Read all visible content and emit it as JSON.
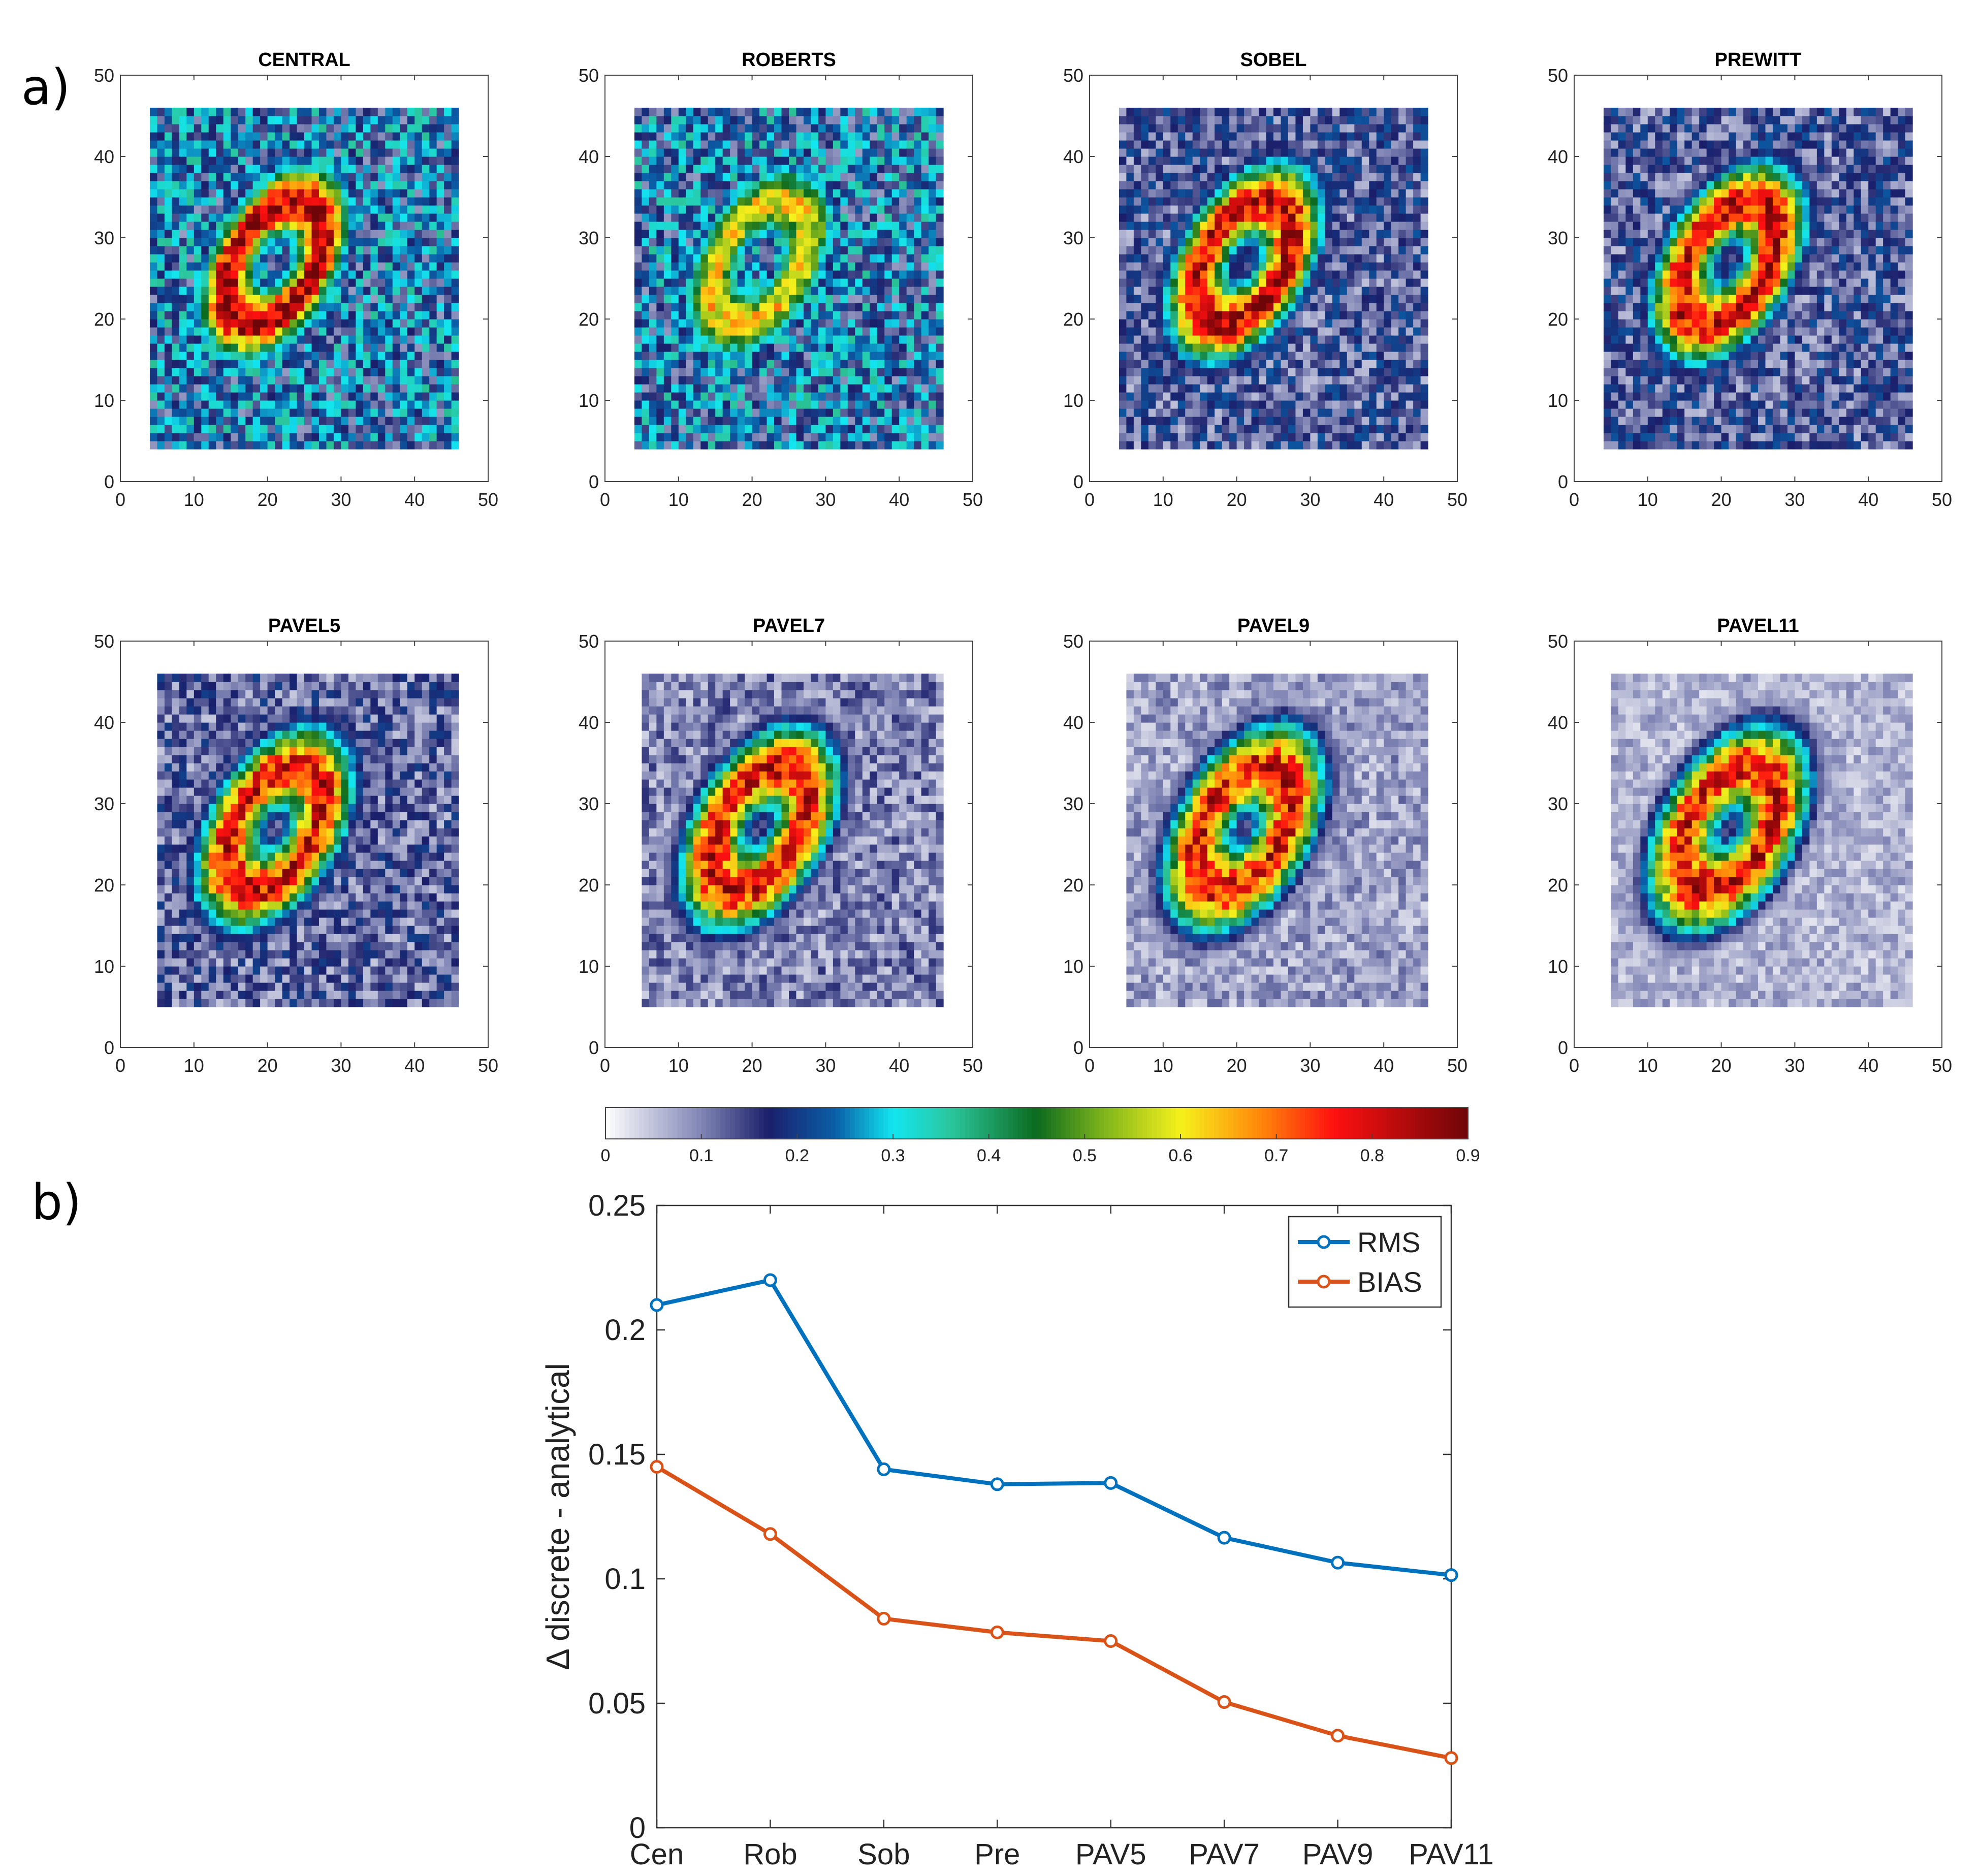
{
  "figure": {
    "panel_a_label": "a)",
    "panel_b_label": "b)"
  },
  "chart_data": [
    {
      "type": "heatmap",
      "panel": "a",
      "note": "2D grid maps (values 0 to 0.9) showing an elliptical ring near (21, 27); noisy background",
      "grid": {
        "x_range": [
          0,
          50
        ],
        "y_range": [
          0,
          50
        ],
        "x_ticks": [
          0,
          10,
          20,
          30,
          40,
          50
        ],
        "y_ticks": [
          0,
          10,
          20,
          30,
          40,
          50
        ]
      },
      "maps": [
        {
          "title": "CENTRAL",
          "extent": [
            4,
            46,
            4,
            46
          ],
          "ring_peak": 0.85,
          "noise_level": 0.32,
          "ring_halfwidth": 2.6,
          "ring_center": [
            21,
            27
          ]
        },
        {
          "title": "ROBERTS",
          "extent": [
            4,
            46,
            4,
            46
          ],
          "ring_peak": 0.62,
          "noise_level": 0.32,
          "ring_halfwidth": 2.6,
          "ring_center": [
            21,
            27
          ]
        },
        {
          "title": "SOBEL",
          "extent": [
            4,
            46,
            4,
            46
          ],
          "ring_peak": 0.82,
          "noise_level": 0.2,
          "ring_halfwidth": 2.9,
          "ring_center": [
            21,
            27
          ]
        },
        {
          "title": "PREWITT",
          "extent": [
            4,
            46,
            4,
            46
          ],
          "ring_peak": 0.82,
          "noise_level": 0.2,
          "ring_halfwidth": 2.9,
          "ring_center": [
            21,
            27
          ]
        },
        {
          "title": "PAVEL5",
          "extent": [
            5,
            46,
            5,
            46
          ],
          "ring_peak": 0.8,
          "noise_level": 0.18,
          "ring_halfwidth": 3.0,
          "ring_center": [
            21,
            27
          ]
        },
        {
          "title": "PAVEL7",
          "extent": [
            5,
            46,
            5,
            46
          ],
          "ring_peak": 0.8,
          "noise_level": 0.14,
          "ring_halfwidth": 3.1,
          "ring_center": [
            21,
            27
          ]
        },
        {
          "title": "PAVEL9",
          "extent": [
            5,
            46,
            5,
            46
          ],
          "ring_peak": 0.8,
          "noise_level": 0.11,
          "ring_halfwidth": 3.2,
          "ring_center": [
            21,
            27
          ]
        },
        {
          "title": "PAVEL11",
          "extent": [
            5,
            46,
            5,
            46
          ],
          "ring_peak": 0.8,
          "noise_level": 0.09,
          "ring_halfwidth": 3.2,
          "ring_center": [
            21,
            27
          ]
        }
      ],
      "colorbar": {
        "range": [
          0,
          0.9
        ],
        "tick_values": [
          0,
          0.1,
          0.2,
          0.3,
          0.4,
          0.5,
          0.6,
          0.7,
          0.8,
          0.9
        ],
        "tick_labels": [
          "0",
          "0.1",
          "0.2",
          "0.3",
          "0.4",
          "0.5",
          "0.6",
          "0.7",
          "0.8",
          "0.9"
        ],
        "colormap": [
          {
            "v": 0.0,
            "c": "#ffffff"
          },
          {
            "v": 0.1,
            "c": "#8085b5"
          },
          {
            "v": 0.17,
            "c": "#1b1f6b"
          },
          {
            "v": 0.24,
            "c": "#0a5fa8"
          },
          {
            "v": 0.3,
            "c": "#12e6f0"
          },
          {
            "v": 0.36,
            "c": "#2bc79e"
          },
          {
            "v": 0.45,
            "c": "#0b6a1e"
          },
          {
            "v": 0.52,
            "c": "#7fb51c"
          },
          {
            "v": 0.6,
            "c": "#f6f11c"
          },
          {
            "v": 0.68,
            "c": "#ff8c0a"
          },
          {
            "v": 0.76,
            "c": "#ff1010"
          },
          {
            "v": 0.9,
            "c": "#6e0508"
          }
        ]
      }
    },
    {
      "type": "line",
      "panel": "b",
      "title": "",
      "categories": [
        "Cen",
        "Rob",
        "Sob",
        "Pre",
        "PAV5",
        "PAV7",
        "PAV9",
        "PAV11"
      ],
      "series": [
        {
          "name": "RMS",
          "color": "#0072bd",
          "values": [
            0.21,
            0.22,
            0.144,
            0.138,
            0.1385,
            0.1165,
            0.1065,
            0.1015
          ]
        },
        {
          "name": "BIAS",
          "color": "#d95319",
          "values": [
            0.145,
            0.118,
            0.084,
            0.0785,
            0.075,
            0.0505,
            0.037,
            0.028
          ]
        }
      ],
      "xlabel": "",
      "ylabel": "Δ discrete - analytical",
      "ylim": [
        0,
        0.25
      ],
      "y_ticks": [
        0,
        0.05,
        0.1,
        0.15,
        0.2,
        0.25
      ],
      "y_tick_labels": [
        "0",
        "0.05",
        "0.1",
        "0.15",
        "0.2",
        "0.25"
      ],
      "legend": "top-right",
      "grid": false
    }
  ]
}
